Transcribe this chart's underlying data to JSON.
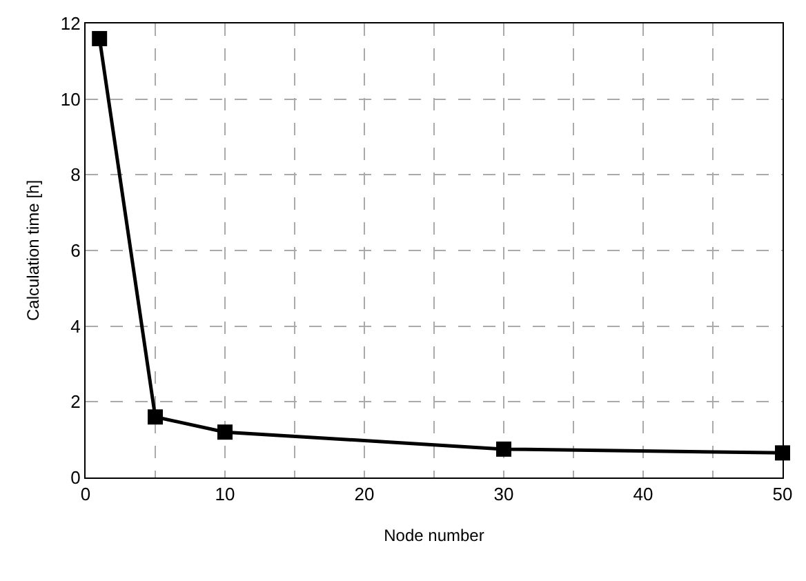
{
  "chart_data": {
    "type": "line",
    "xlabel": "Node number",
    "ylabel": "Calculation time [h]",
    "x": [
      1,
      5,
      10,
      30,
      50
    ],
    "series": [
      {
        "color": "#000000",
        "values": [
          11.6,
          1.6,
          1.2,
          0.75,
          0.65
        ]
      }
    ],
    "xlim": [
      0,
      50
    ],
    "xticks": [
      0,
      {
        "value": 5,
        "label": null
      },
      10,
      {
        "value": 15,
        "label": null
      },
      20,
      {
        "value": 25,
        "label": null
      },
      30,
      {
        "value": 35,
        "label": null
      },
      40,
      {
        "value": 45,
        "label": null
      },
      50
    ],
    "ylim": [
      0,
      12
    ],
    "yticks": [
      0,
      2,
      4,
      6,
      8,
      10,
      12
    ],
    "grid": true,
    "marker": "square",
    "line_style": "solid"
  }
}
